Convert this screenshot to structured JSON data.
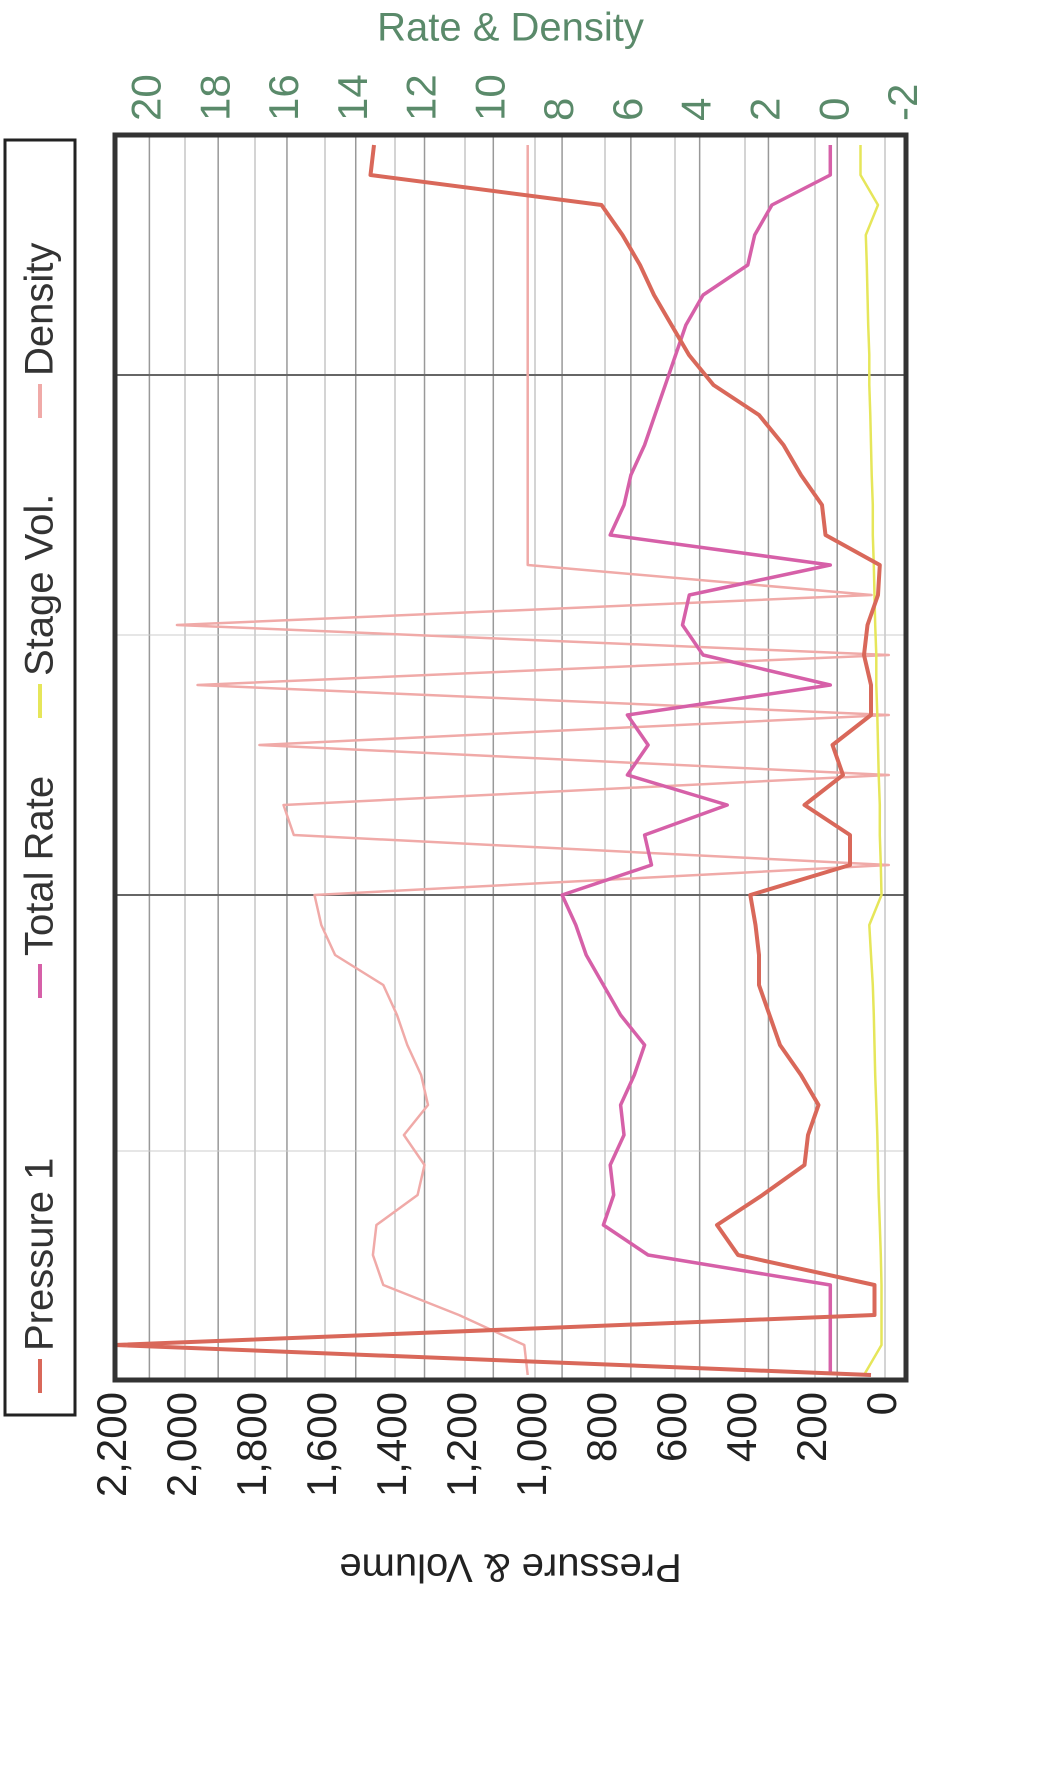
{
  "chart_data": {
    "type": "line",
    "y_label": "Pressure & Volume",
    "y2_label": "Rate & Density",
    "ylim": [
      -60,
      2200
    ],
    "yticks": [
      0,
      200,
      400,
      600,
      800,
      {
        "value": 1000,
        "label": "1,000"
      },
      {
        "value": 1200,
        "label": "1,200"
      },
      {
        "value": 1400,
        "label": "1,400"
      },
      {
        "value": 1600,
        "label": "1,600"
      },
      {
        "value": 1800,
        "label": "1,800"
      },
      {
        "value": 2000,
        "label": "2,000"
      },
      {
        "value": 2200,
        "label": "2,200"
      }
    ],
    "y2lim": [
      -2,
      21
    ],
    "y2ticks": [
      -2,
      0,
      2,
      4,
      6,
      8,
      10,
      12,
      14,
      16,
      18,
      20
    ],
    "grid": true,
    "legend": "left",
    "series": [
      {
        "name": "Pressure 1",
        "color": "#d9685a",
        "values": [
          40,
          2200,
          30,
          30,
          420,
          480,
          350,
          230,
          220,
          190,
          240,
          300,
          330,
          360,
          360,
          370,
          385,
          100,
          100,
          230,
          120,
          150,
          40,
          40,
          60,
          50,
          20,
          15,
          170,
          180,
          240,
          290,
          360,
          490,
          560,
          610,
          660,
          700,
          750,
          810,
          1470,
          1460
        ]
      },
      {
        "name": "Total Rate",
        "color": "#d660a8",
        "axis": "y2",
        "values": [
          0.2,
          0.2,
          0.2,
          0.2,
          5.5,
          6.8,
          6.5,
          6.6,
          6.2,
          6.3,
          5.9,
          5.6,
          6.3,
          6.8,
          7.3,
          7.6,
          8.0,
          5.4,
          5.6,
          3.2,
          6.1,
          5.5,
          6.1,
          0.2,
          3.9,
          4.5,
          4.3,
          0.2,
          6.6,
          6.2,
          6.0,
          5.6,
          5.3,
          5.0,
          4.7,
          4.4,
          3.9,
          2.6,
          2.4,
          1.9,
          0.2,
          0.2
        ]
      },
      {
        "name": "Stage Vol.",
        "color": "#e6e65a",
        "values": [
          60,
          10,
          10,
          10,
          12,
          15,
          18,
          20,
          22,
          25,
          28,
          30,
          32,
          35,
          40,
          45,
          10,
          12,
          15,
          15,
          18,
          20,
          22,
          25,
          25,
          28,
          30,
          32,
          35,
          35,
          38,
          40,
          42,
          45,
          45,
          48,
          50,
          52,
          55,
          20,
          70,
          70
        ]
      },
      {
        "name": "Density",
        "color": "#f0aaa8",
        "axis": "y2",
        "values": [
          9.0,
          9.1,
          11.0,
          13.2,
          13.5,
          13.4,
          12.2,
          12.0,
          12.6,
          11.9,
          12.1,
          12.5,
          12.8,
          13.2,
          14.6,
          15.0,
          15.2,
          -1.5,
          15.8,
          16.1,
          -1.5,
          16.8,
          -1.5,
          18.6,
          -1.5,
          19.2,
          -1.0,
          9.0,
          9.0,
          9.0,
          9.0,
          9.0,
          9.0,
          9.0,
          9.0,
          9.0,
          9.0,
          9.0,
          9.0,
          9.0,
          9.0,
          9.0
        ]
      }
    ]
  }
}
